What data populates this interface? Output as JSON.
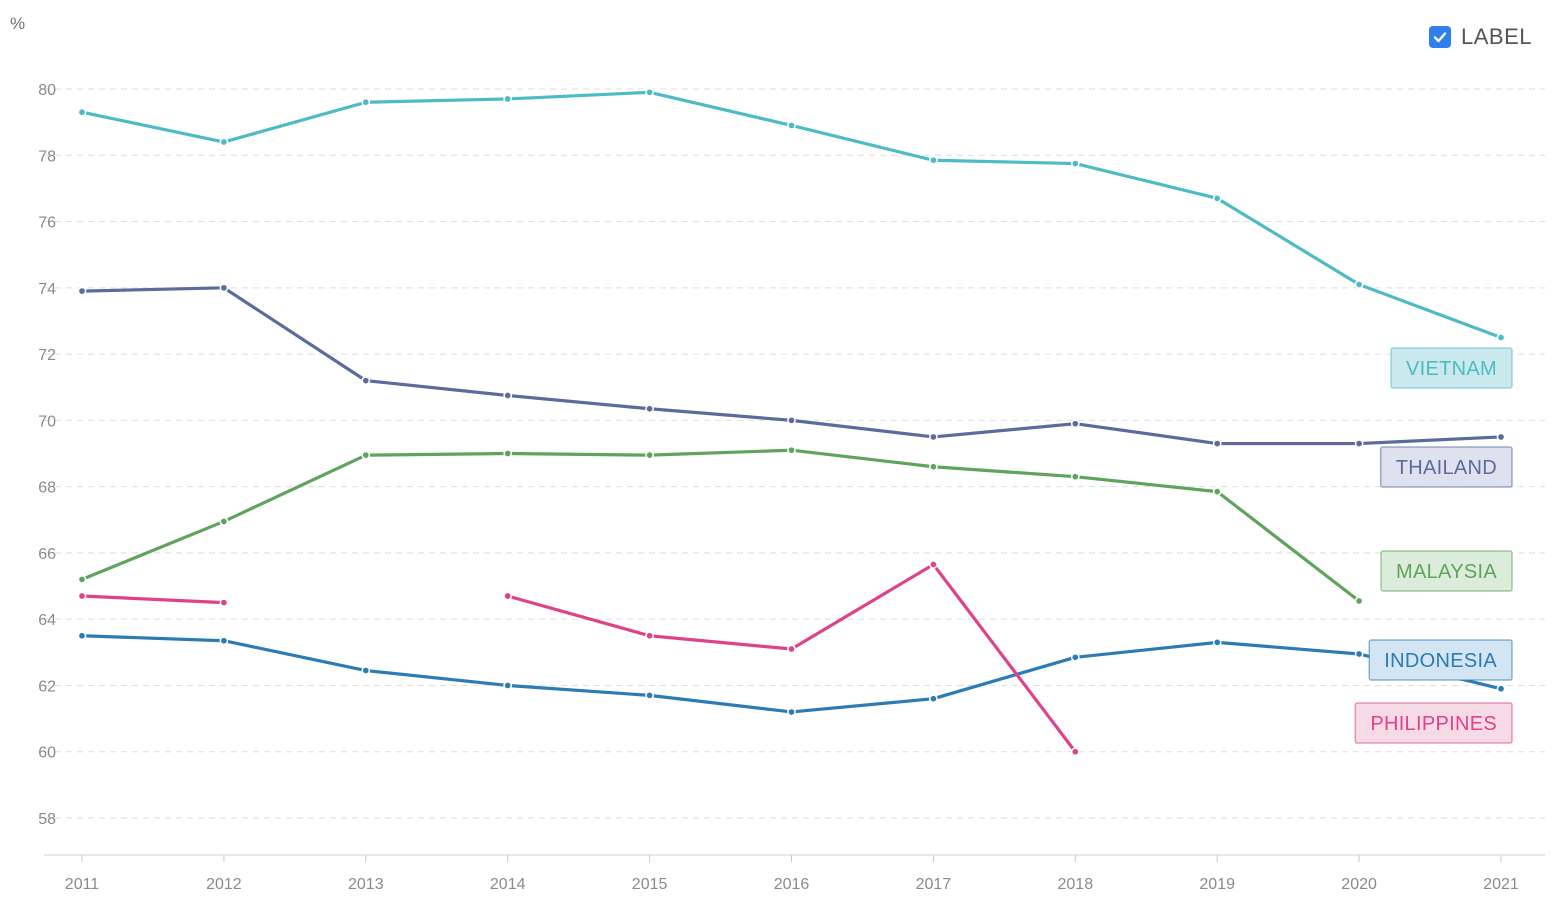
{
  "unit_label": "%",
  "toggle": {
    "label": "LABEL",
    "checked": true,
    "accent": "#2f80ed"
  },
  "chart_data": {
    "type": "line",
    "title": "",
    "xlabel": "",
    "ylabel": "%",
    "x": [
      2011,
      2012,
      2013,
      2014,
      2015,
      2016,
      2017,
      2018,
      2019,
      2020,
      2021
    ],
    "ylim": [
      57,
      81
    ],
    "yticks": [
      58,
      60,
      62,
      64,
      66,
      68,
      70,
      72,
      74,
      76,
      78,
      80
    ],
    "grid": true,
    "series": [
      {
        "name": "VIETNAM",
        "color": "#4dbbc4",
        "fill": "#c9e9ec",
        "values": [
          79.3,
          78.4,
          79.6,
          79.7,
          79.9,
          78.9,
          77.85,
          77.75,
          76.7,
          74.1,
          72.5
        ]
      },
      {
        "name": "THAILAND",
        "color": "#5a6b9c",
        "fill": "#dfe2ee",
        "values": [
          73.9,
          74.0,
          71.2,
          70.75,
          70.35,
          70.0,
          69.5,
          69.9,
          69.3,
          69.3,
          69.5
        ]
      },
      {
        "name": "MALAYSIA",
        "color": "#5fa35d",
        "fill": "#dcecdb",
        "values": [
          65.2,
          66.95,
          68.95,
          69.0,
          68.95,
          69.1,
          68.6,
          68.3,
          67.85,
          64.55,
          null
        ]
      },
      {
        "name": "INDONESIA",
        "color": "#2c7bb4",
        "fill": "#d3e4f2",
        "values": [
          63.5,
          63.35,
          62.45,
          62.0,
          61.7,
          61.2,
          61.6,
          62.85,
          63.3,
          62.95,
          61.9
        ]
      },
      {
        "name": "PHILIPPINES",
        "color": "#e0428a",
        "fill": "#f6dbe7",
        "values": [
          64.7,
          64.5,
          null,
          64.7,
          63.5,
          63.1,
          65.65,
          60.0,
          null,
          null,
          null
        ]
      }
    ]
  }
}
